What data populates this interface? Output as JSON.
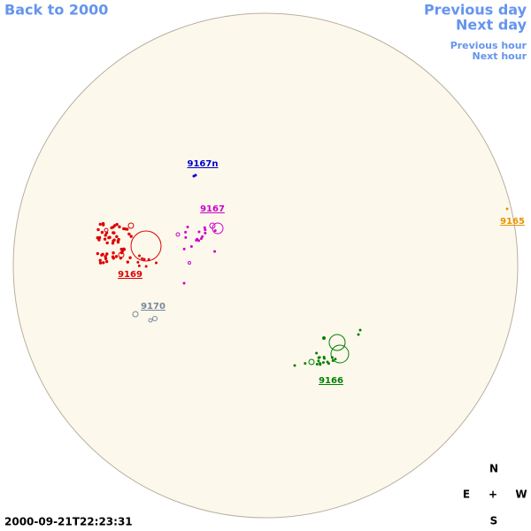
{
  "navigation": {
    "back": "Back to 2000",
    "previous_day": "Previous day",
    "next_day": "Next day",
    "previous_hour": "Previous hour",
    "next_hour": "Next hour"
  },
  "regions": [
    {
      "label": "9167n",
      "color": "#0000cc"
    },
    {
      "label": "9167",
      "color": "#cc00cc"
    },
    {
      "label": "9165",
      "color": "#e69500"
    },
    {
      "label": "9169",
      "color": "#dd0000"
    },
    {
      "label": "9170",
      "color": "#778899"
    },
    {
      "label": "9166",
      "color": "#008000"
    }
  ],
  "compass": {
    "north": "N",
    "east": "E",
    "center": "+",
    "west": "W",
    "south": "S"
  },
  "timestamp": "2000-09-21T22:23:31"
}
